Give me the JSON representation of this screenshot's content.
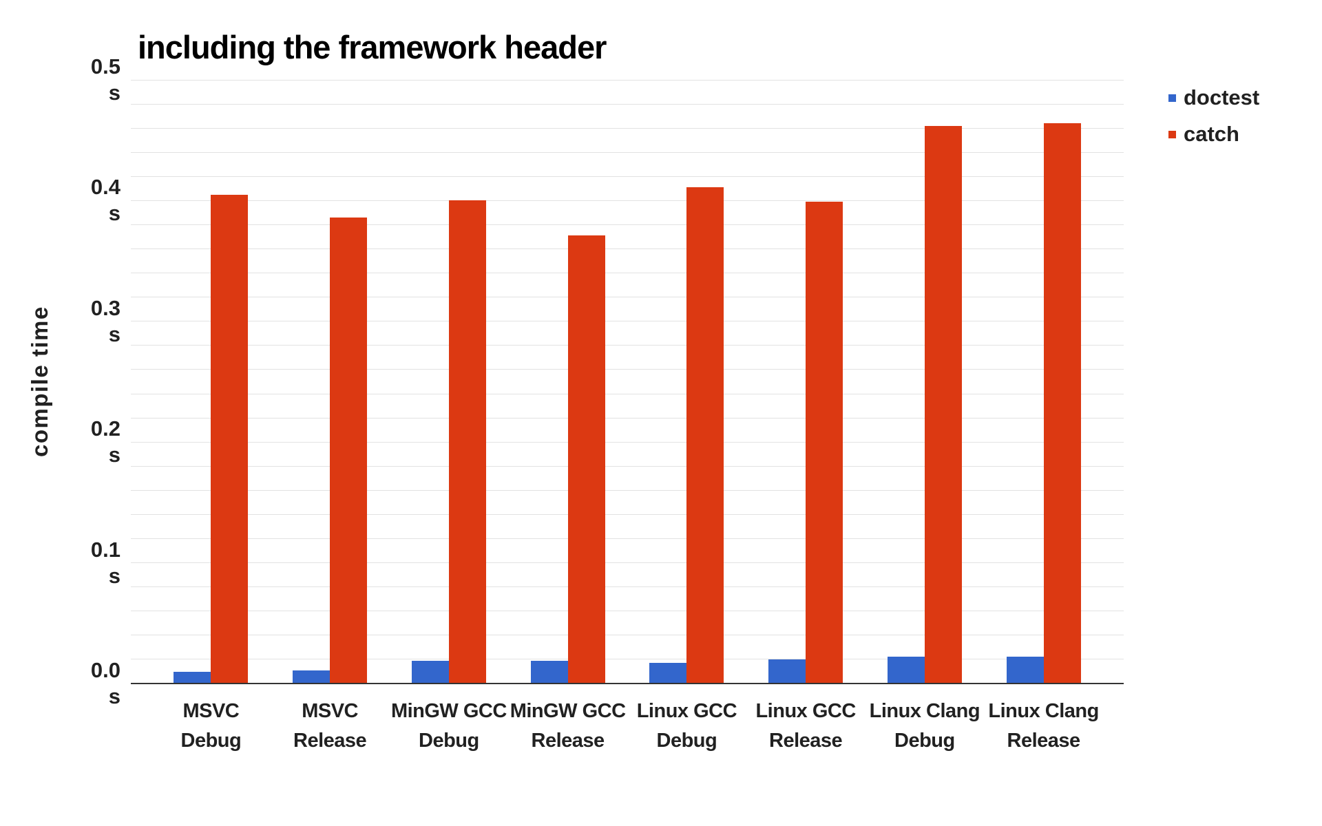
{
  "colors": {
    "background": "#ffffff",
    "title_text": "#000000",
    "label_text": "#212121",
    "gridline": "#e2e2e2",
    "axis_line": "#333333",
    "doctest_blue": "#3366cc",
    "catch_red": "#dc3912"
  },
  "chart_data": {
    "type": "bar",
    "title": "including the framework header",
    "ylabel": "compile time",
    "xlabel": "",
    "unit": "s",
    "categories": [
      "MSVC Debug",
      "MSVC Release",
      "MinGW GCC Debug",
      "MinGW GCC Release",
      "Linux GCC Debug",
      "Linux GCC Release",
      "Linux Clang Debug",
      "Linux Clang Release"
    ],
    "category_lines": [
      [
        "MSVC",
        "Debug"
      ],
      [
        "MSVC",
        "Release"
      ],
      [
        "MinGW GCC",
        "Debug"
      ],
      [
        "MinGW GCC",
        "Release"
      ],
      [
        "Linux GCC",
        "Debug"
      ],
      [
        "Linux GCC",
        "Release"
      ],
      [
        "Linux Clang",
        "Debug"
      ],
      [
        "Linux Clang",
        "Release"
      ]
    ],
    "series": [
      {
        "name": "doctest",
        "color": "#3366cc",
        "values": [
          0.01,
          0.011,
          0.019,
          0.019,
          0.017,
          0.02,
          0.022,
          0.022
        ]
      },
      {
        "name": "catch",
        "color": "#dc3912",
        "values": [
          0.405,
          0.386,
          0.4,
          0.371,
          0.411,
          0.399,
          0.462,
          0.464
        ]
      }
    ],
    "ylim": [
      0,
      0.5
    ],
    "y_tick_step": 0.1,
    "y_ticks": [
      "0.0",
      "0.1",
      "0.2",
      "0.3",
      "0.4",
      "0.5"
    ],
    "minor_grid_step": 0.02,
    "grid": true,
    "legend_position": "right-top"
  }
}
